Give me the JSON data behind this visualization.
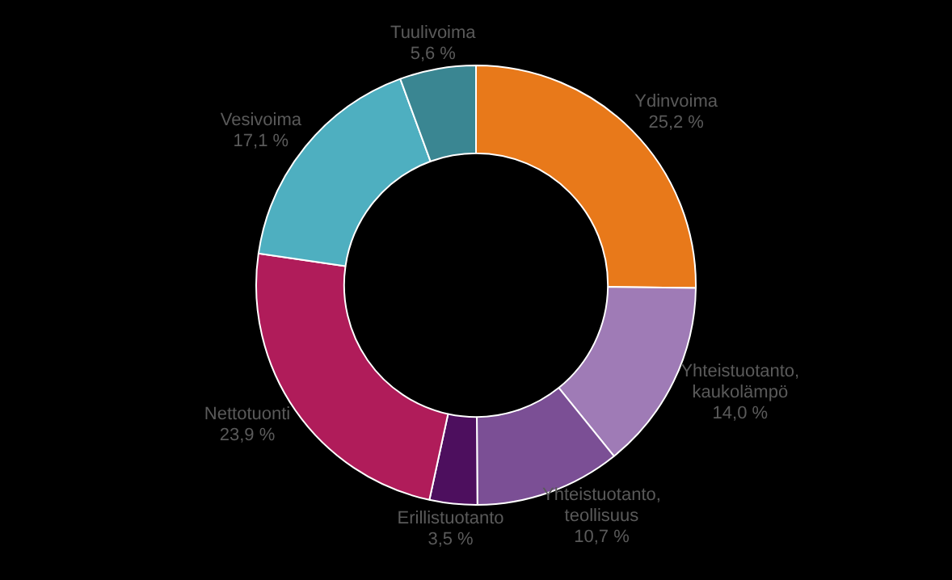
{
  "chart_data": {
    "type": "donut",
    "categories": [
      "Ydinvoima",
      "Yhteistuotanto, kaukolämpö",
      "Yhteistuotanto, teollisuus",
      "Erillistuotanto",
      "Nettotuonti",
      "Vesivoima",
      "Tuulivoima"
    ],
    "values": [
      25.2,
      14.0,
      10.7,
      3.5,
      23.9,
      17.1,
      5.6
    ],
    "value_labels": [
      "25,2 %",
      "14,0 %",
      "10,7 %",
      "3,5 %",
      "23,9 %",
      "17,1 %",
      "5,6 %"
    ],
    "colors": [
      "#e8791a",
      "#9f7bb6",
      "#7b4f95",
      "#4d0f5e",
      "#b01c5a",
      "#4eafc0",
      "#3a8692"
    ],
    "legend": false
  }
}
